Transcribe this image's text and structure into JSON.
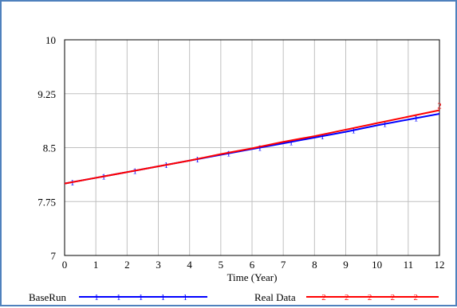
{
  "colors": {
    "frame": "#4f81bd",
    "grid": "#c0c0c0"
  },
  "chart_data": {
    "type": "line",
    "title": "",
    "xlabel": "Time (Year)",
    "ylabel": "",
    "xlim": [
      0,
      12
    ],
    "ylim": [
      7,
      10
    ],
    "x_ticks": [
      "0",
      "1",
      "2",
      "3",
      "4",
      "5",
      "6",
      "7",
      "8",
      "9",
      "10",
      "11",
      "12"
    ],
    "y_ticks": [
      "7",
      "7.75",
      "8.5",
      "9.25",
      "10"
    ],
    "grid": true,
    "legend_position": "bottom",
    "series": [
      {
        "name": "BaseRun",
        "color": "#0000ff",
        "marker": "1",
        "x": [
          0,
          1,
          2,
          3,
          4,
          5,
          6,
          7,
          8,
          9,
          10,
          11,
          12
        ],
        "y": [
          8.0,
          8.08,
          8.16,
          8.24,
          8.32,
          8.4,
          8.48,
          8.56,
          8.64,
          8.72,
          8.81,
          8.89,
          8.97
        ]
      },
      {
        "name": "Real Data",
        "color": "#ff0000",
        "marker": "2",
        "x": [
          0,
          1,
          2,
          3,
          4,
          5,
          6,
          7,
          8,
          9,
          10,
          11,
          12
        ],
        "y": [
          8.0,
          8.08,
          8.16,
          8.24,
          8.32,
          8.41,
          8.49,
          8.58,
          8.66,
          8.75,
          8.84,
          8.93,
          9.02
        ]
      }
    ]
  }
}
